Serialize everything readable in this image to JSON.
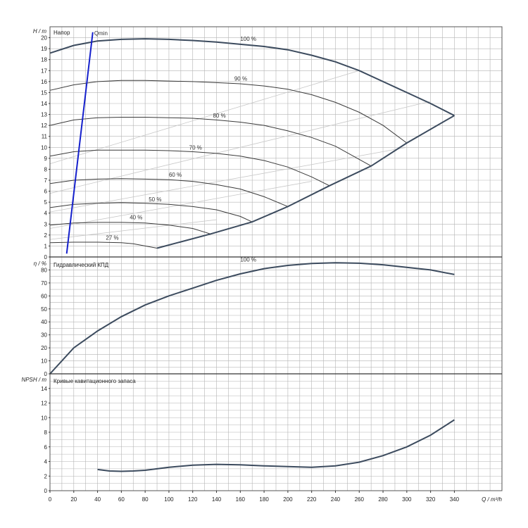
{
  "x_axis": {
    "label": "Q / m³/h",
    "ticks": [
      0,
      20,
      40,
      60,
      80,
      100,
      120,
      140,
      160,
      180,
      200,
      220,
      240,
      260,
      280,
      300,
      320,
      340
    ],
    "range": [
      0,
      380
    ]
  },
  "panels": {
    "head": {
      "ylabel": "H / m",
      "title": "Напор",
      "yrange": [
        0,
        21
      ],
      "yticks": [
        0,
        1,
        2,
        3,
        4,
        5,
        6,
        7,
        8,
        9,
        10,
        11,
        12,
        13,
        14,
        15,
        16,
        17,
        18,
        19,
        20
      ]
    },
    "eff": {
      "ylabel": "η / %",
      "title": "Гидравлический КПД",
      "yrange": [
        0,
        90
      ],
      "yticks": [
        0,
        10,
        20,
        30,
        40,
        50,
        60,
        70,
        80
      ]
    },
    "npsh": {
      "ylabel": "NPSH / m",
      "title": "Кривые кавитационного запаса",
      "yrange": [
        0,
        16
      ],
      "yticks": [
        0,
        2,
        4,
        6,
        8,
        10,
        12,
        14
      ]
    }
  },
  "chart_data": [
    {
      "type": "line",
      "title": "Напор",
      "xlabel": "Q / m³/h",
      "ylabel": "H / m",
      "xlim": [
        0,
        380
      ],
      "ylim": [
        0,
        21
      ],
      "grid": true,
      "series": [
        {
          "name": "100 %",
          "x": [
            0,
            20,
            40,
            60,
            80,
            100,
            120,
            140,
            160,
            180,
            200,
            220,
            240,
            260,
            280,
            300,
            320,
            340
          ],
          "y": [
            18.6,
            19.3,
            19.7,
            19.85,
            19.9,
            19.85,
            19.75,
            19.6,
            19.4,
            19.2,
            18.9,
            18.4,
            17.8,
            17.0,
            16.0,
            15.0,
            14.0,
            12.9
          ]
        },
        {
          "name": "90 %",
          "x": [
            0,
            20,
            40,
            60,
            80,
            100,
            120,
            140,
            160,
            180,
            200,
            220,
            240,
            260,
            280,
            300
          ],
          "y": [
            15.2,
            15.7,
            16.0,
            16.1,
            16.1,
            16.05,
            16.0,
            15.9,
            15.8,
            15.6,
            15.3,
            14.8,
            14.1,
            13.2,
            12.0,
            10.4
          ]
        },
        {
          "name": "80 %",
          "x": [
            0,
            20,
            40,
            60,
            80,
            100,
            120,
            140,
            160,
            180,
            200,
            220,
            240,
            260,
            270
          ],
          "y": [
            12.0,
            12.5,
            12.7,
            12.75,
            12.75,
            12.7,
            12.65,
            12.5,
            12.3,
            12.0,
            11.5,
            10.9,
            10.1,
            8.9,
            8.3
          ]
        },
        {
          "name": "70 %",
          "x": [
            0,
            20,
            40,
            60,
            80,
            100,
            120,
            140,
            160,
            180,
            200,
            220,
            235
          ],
          "y": [
            9.2,
            9.6,
            9.75,
            9.75,
            9.75,
            9.7,
            9.6,
            9.45,
            9.2,
            8.8,
            8.2,
            7.3,
            6.5
          ]
        },
        {
          "name": "60 %",
          "x": [
            0,
            20,
            40,
            60,
            80,
            100,
            120,
            140,
            160,
            180,
            200
          ],
          "y": [
            6.7,
            7.0,
            7.1,
            7.15,
            7.1,
            7.05,
            6.9,
            6.6,
            6.2,
            5.5,
            4.6
          ]
        },
        {
          "name": "50 %",
          "x": [
            0,
            20,
            40,
            60,
            80,
            100,
            120,
            140,
            160,
            170
          ],
          "y": [
            4.5,
            4.8,
            4.9,
            4.95,
            4.9,
            4.8,
            4.6,
            4.3,
            3.7,
            3.2
          ]
        },
        {
          "name": "40 %",
          "x": [
            0,
            20,
            40,
            60,
            80,
            100,
            120,
            135
          ],
          "y": [
            2.9,
            3.1,
            3.15,
            3.15,
            3.1,
            2.9,
            2.6,
            2.1
          ]
        },
        {
          "name": "27 %",
          "x": [
            0,
            20,
            40,
            60,
            70,
            80,
            90
          ],
          "y": [
            1.3,
            1.35,
            1.35,
            1.3,
            1.2,
            1.0,
            0.8
          ]
        },
        {
          "name": "Qmin",
          "x": [
            14,
            36
          ],
          "y": [
            0.3,
            20.5
          ]
        }
      ]
    },
    {
      "type": "line",
      "title": "Гидравлический КПД",
      "xlabel": "Q / m³/h",
      "ylabel": "η / %",
      "xlim": [
        0,
        380
      ],
      "ylim": [
        0,
        90
      ],
      "grid": true,
      "series": [
        {
          "name": "100 %",
          "x": [
            0,
            20,
            40,
            60,
            80,
            100,
            120,
            140,
            160,
            180,
            200,
            220,
            240,
            260,
            280,
            300,
            320,
            340
          ],
          "y": [
            0,
            20,
            33,
            44,
            53,
            60,
            66,
            72,
            77,
            81,
            83.5,
            85,
            85.5,
            85.2,
            84,
            82,
            80,
            76.5
          ]
        }
      ]
    },
    {
      "type": "line",
      "title": "Кривые кавитационного запаса",
      "xlabel": "Q / m³/h",
      "ylabel": "NPSH / m",
      "xlim": [
        0,
        380
      ],
      "ylim": [
        0,
        16
      ],
      "grid": true,
      "series": [
        {
          "name": "",
          "x": [
            40,
            50,
            60,
            70,
            80,
            100,
            120,
            140,
            160,
            180,
            200,
            220,
            240,
            260,
            280,
            300,
            320,
            340
          ],
          "y": [
            2.9,
            2.7,
            2.65,
            2.7,
            2.8,
            3.2,
            3.5,
            3.6,
            3.55,
            3.4,
            3.3,
            3.2,
            3.4,
            3.9,
            4.8,
            6.0,
            7.6,
            9.7
          ]
        }
      ]
    }
  ],
  "colors": {
    "grid": "#b4b4b4",
    "curve_main": "#3c4b5e",
    "curve_thin": "#3a3a3a",
    "qmin": "#1520cc",
    "efficiency_lines": "#c8c8c8"
  }
}
